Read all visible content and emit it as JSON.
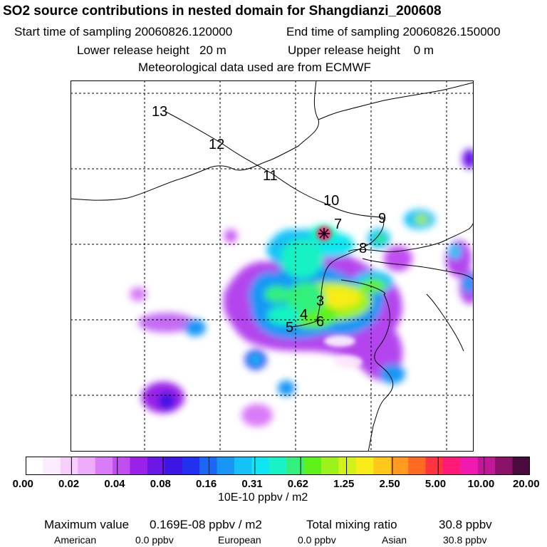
{
  "header": {
    "title": "SO2 source contributions in nested domain for Shangdianzi_200608",
    "start_time": "Start time of sampling 20060826.120000",
    "end_time": "End time of sampling 20060826.150000",
    "lower_release": "Lower release height   20 m",
    "upper_release": "Upper release height    0 m",
    "met_data": "Meteorological data used are from ECMWF"
  },
  "map": {
    "trajectory_labels": [
      "13",
      "12",
      "11",
      "10",
      "9",
      "8",
      "7",
      "3",
      "4",
      "6",
      "5"
    ],
    "receptor_symbol": "star-marker"
  },
  "colorbar": {
    "ticks": [
      "0.00",
      "0.02",
      "0.04",
      "0.08",
      "0.16",
      "0.31",
      "0.62",
      "1.25",
      "2.50",
      "5.00",
      "10.00",
      "20.00"
    ],
    "colors": [
      "#ffffff",
      "#fcecff",
      "#f6cffd",
      "#ecacfb",
      "#d97cf7",
      "#c14ef1",
      "#9a22e8",
      "#6a17e8",
      "#3d16e6",
      "#2230f0",
      "#1c66f4",
      "#1896f6",
      "#14c2f8",
      "#10e6f2",
      "#18f2c4",
      "#33f07c",
      "#5ef21a",
      "#9cf21a",
      "#d4f21a",
      "#f7ec18",
      "#ffc81a",
      "#ff9a1e",
      "#ff6a22",
      "#ff3440",
      "#ff1a78",
      "#f01ab0",
      "#c01898",
      "#8a1268",
      "#4a0a3c"
    ],
    "units": "10E-10 ppbv / m2"
  },
  "summary": {
    "max_label": "Maximum value",
    "max_value": "0.169E-08 ppbv / m2",
    "total_label": "Total mixing ratio",
    "total_value": "30.8 ppbv",
    "american_label": "American",
    "american_value": "0.0 ppbv",
    "european_label": "European",
    "european_value": "0.0 ppbv",
    "asian_label": "Asian",
    "asian_value": "30.8 ppbv"
  }
}
